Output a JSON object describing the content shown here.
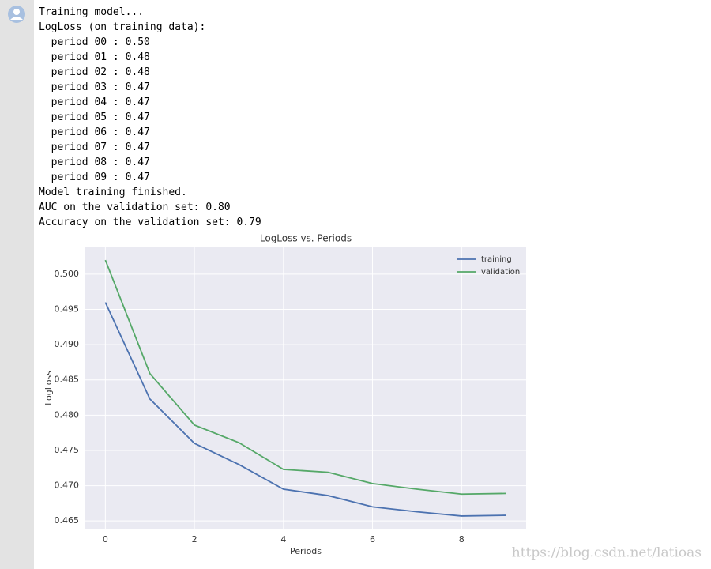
{
  "output": {
    "lines": [
      "Training model...",
      "LogLoss (on training data):",
      "  period 00 : 0.50",
      "  period 01 : 0.48",
      "  period 02 : 0.48",
      "  period 03 : 0.47",
      "  period 04 : 0.47",
      "  period 05 : 0.47",
      "  period 06 : 0.47",
      "  period 07 : 0.47",
      "  period 08 : 0.47",
      "  period 09 : 0.47",
      "Model training finished.",
      "AUC on the validation set: 0.80",
      "Accuracy on the validation set: 0.79"
    ]
  },
  "chart_data": {
    "type": "line",
    "title": "LogLoss vs. Periods",
    "x_label": "Periods",
    "y_label": "LogLoss",
    "x": [
      0,
      1,
      2,
      3,
      4,
      5,
      6,
      7,
      8,
      9
    ],
    "series": [
      {
        "name": "training",
        "color": "#4c72b0",
        "values": [
          0.496,
          0.4823,
          0.476,
          0.473,
          0.4695,
          0.4686,
          0.467,
          0.4663,
          0.4657,
          0.4658
        ]
      },
      {
        "name": "validation",
        "color": "#55a868",
        "values": [
          0.502,
          0.4859,
          0.4786,
          0.4761,
          0.4723,
          0.4719,
          0.4703,
          0.4695,
          0.4688,
          0.4689
        ]
      }
    ],
    "xlim": [
      -0.45,
      9.45
    ],
    "xticks": [
      0,
      2,
      4,
      6,
      8
    ],
    "ylim": [
      0.4639,
      0.5038
    ],
    "yticks": [
      0.465,
      {
        "value": 0.47,
        "label": "0.470"
      },
      0.475,
      {
        "value": 0.48,
        "label": "0.480"
      },
      0.485,
      {
        "value": 0.49,
        "label": "0.490"
      },
      0.495,
      {
        "value": 0.5,
        "label": "0.500"
      }
    ],
    "grid": true,
    "legend": "upper right"
  },
  "watermark": "https://blog.csdn.net/latioas"
}
